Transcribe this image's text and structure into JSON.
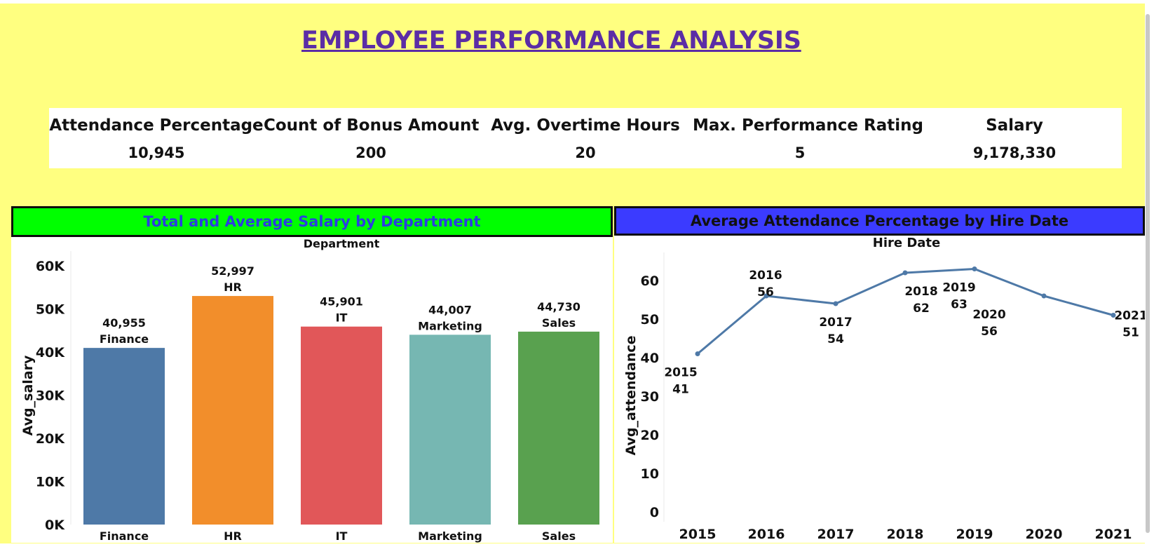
{
  "dashboard_title": "EMPLOYEE PERFORMANCE ANALYSIS",
  "kpis": [
    {
      "label": "Attendance Percentage",
      "value": "10,945"
    },
    {
      "label": "Count of Bonus Amount",
      "value": "200"
    },
    {
      "label": "Avg. Overtime Hours",
      "value": "20"
    },
    {
      "label": "Max. Performance Rating",
      "value": "5"
    },
    {
      "label": "Salary",
      "value": "9,178,330"
    }
  ],
  "colors": {
    "background": "#ffff80",
    "title": "#5b2da6",
    "salary_header_bg": "#00ff00",
    "salary_header_text": "#2b3ee0",
    "attendance_header_bg": "#3b3bff",
    "attendance_header_text": "#111111",
    "line": "#4e79a7"
  },
  "salary_panel": {
    "header": "Total and Average Salary by Department"
  },
  "attendance_panel": {
    "header": "Average Attendance Percentage by Hire Date"
  },
  "chart_data": [
    {
      "type": "bar",
      "title": "Department",
      "xlabel": "",
      "ylabel": "Avg_salary",
      "ylim": [
        0,
        60000
      ],
      "y_ticks": [
        {
          "value": 0,
          "label": "0K"
        },
        {
          "value": 10000,
          "label": "10K"
        },
        {
          "value": 20000,
          "label": "20K"
        },
        {
          "value": 30000,
          "label": "30K"
        },
        {
          "value": 40000,
          "label": "40K"
        },
        {
          "value": 50000,
          "label": "50K"
        },
        {
          "value": 60000,
          "label": "60K"
        }
      ],
      "categories": [
        "Finance",
        "HR",
        "IT",
        "Marketing",
        "Sales"
      ],
      "values": [
        40955,
        52997,
        45901,
        44007,
        44730
      ],
      "value_labels": [
        "40,955",
        "52,997",
        "45,901",
        "44,007",
        "44,730"
      ],
      "bar_colors": [
        "#4e79a7",
        "#f28e2b",
        "#e15759",
        "#76b7b2",
        "#59a14f"
      ]
    },
    {
      "type": "line",
      "title": "Hire Date",
      "xlabel": "",
      "ylabel": "Avg_attendance",
      "ylim": [
        0,
        65
      ],
      "y_ticks": [
        0,
        10,
        20,
        30,
        40,
        50,
        60
      ],
      "x": [
        "2015",
        "2016",
        "2017",
        "2018",
        "2019",
        "2020",
        "2021"
      ],
      "values": [
        41,
        56,
        54,
        62,
        63,
        56,
        51
      ],
      "color": "#4e79a7"
    }
  ]
}
